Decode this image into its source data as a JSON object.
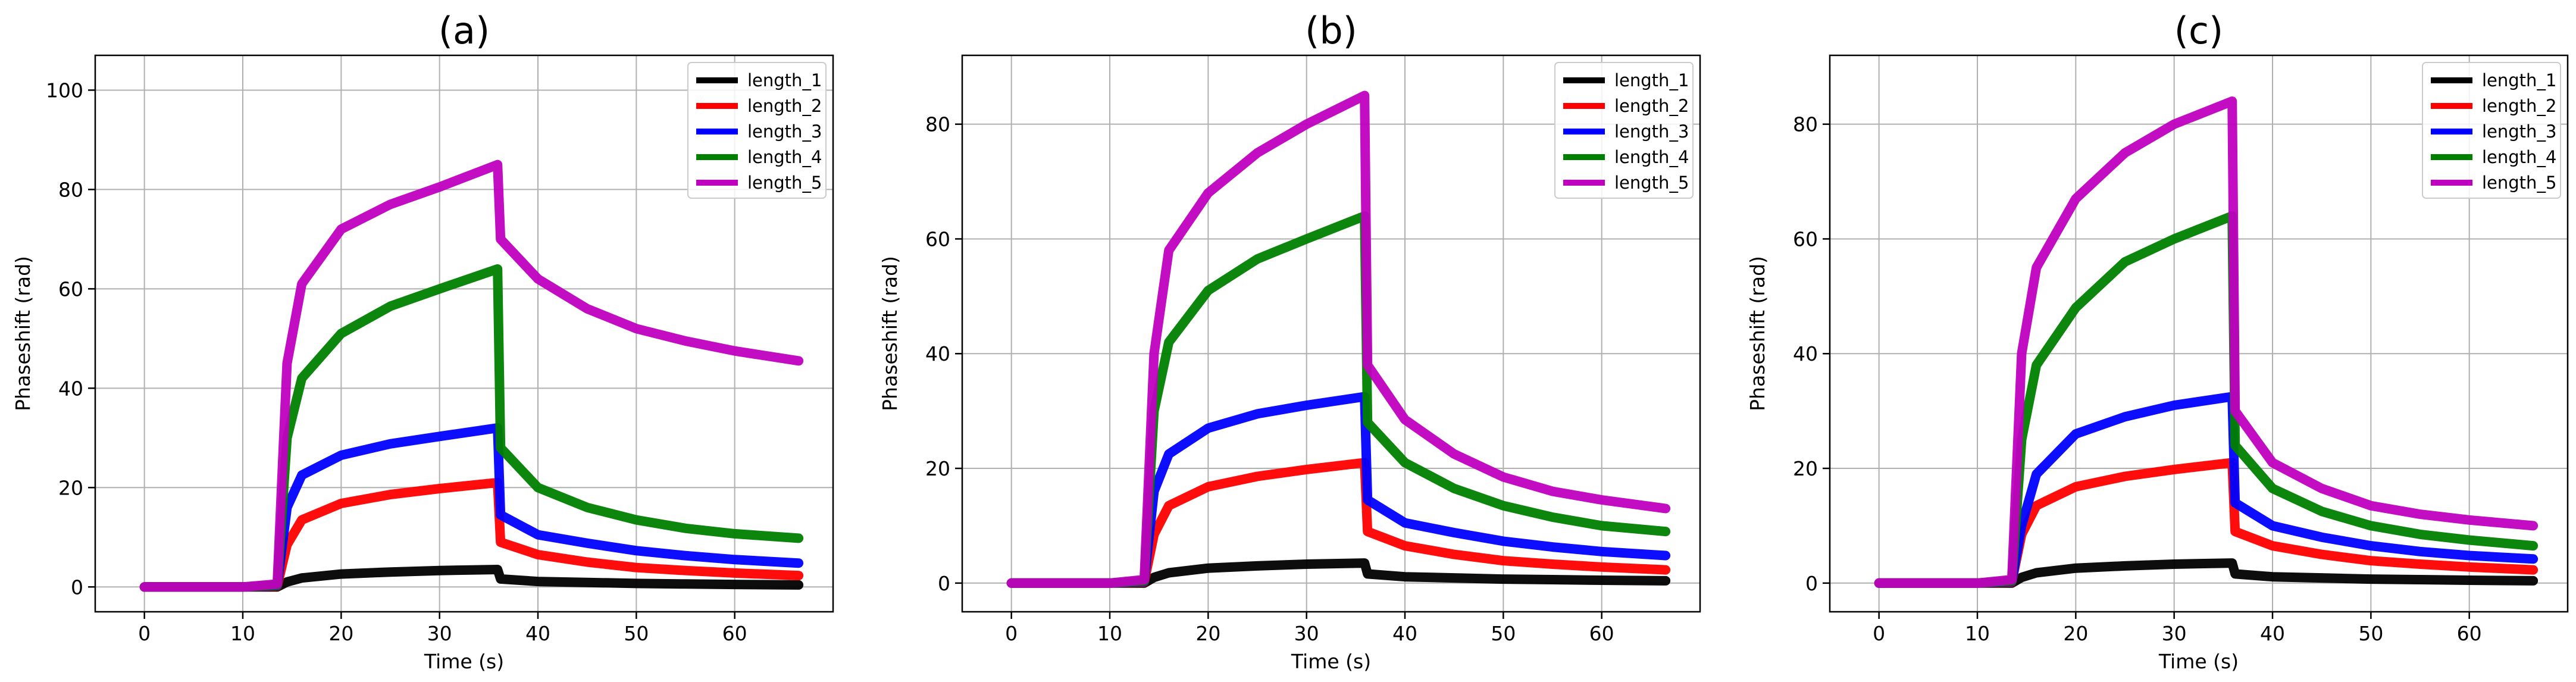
{
  "colors": {
    "length_1": "#000000",
    "length_2": "#ff0000",
    "length_3": "#0000ff",
    "length_4": "#008000",
    "length_5": "#bf00bf",
    "grid": "#b0b0b0",
    "axes": "#000000",
    "legend_border": "#cccccc"
  },
  "chart_data": [
    {
      "type": "line",
      "title": "(a)",
      "xlabel": "Time (s)",
      "ylabel": "Phaseshift (rad)",
      "xlim": [
        -5,
        70
      ],
      "ylim": [
        -5,
        107
      ],
      "xticks": [
        0,
        10,
        20,
        30,
        40,
        50,
        60
      ],
      "yticks": [
        0,
        20,
        40,
        60,
        80,
        100
      ],
      "grid": true,
      "legend": {
        "position": "top-right",
        "entries": [
          "length_1",
          "length_2",
          "length_3",
          "length_4",
          "length_5"
        ]
      },
      "x": [
        0,
        5,
        10,
        13.5,
        14.5,
        16,
        20,
        25,
        30,
        35.9,
        36.2,
        40,
        45,
        50,
        55,
        60,
        66.5
      ],
      "series": [
        {
          "name": "length_1",
          "values": [
            0,
            0,
            0,
            0,
            1.0,
            1.8,
            2.6,
            3.0,
            3.3,
            3.5,
            1.6,
            1.1,
            0.9,
            0.7,
            0.6,
            0.5,
            0.4
          ]
        },
        {
          "name": "length_2",
          "values": [
            0,
            0,
            0,
            0.2,
            8.5,
            13.5,
            16.8,
            18.6,
            19.8,
            21.0,
            9.0,
            6.5,
            5.0,
            3.9,
            3.3,
            2.8,
            2.3
          ]
        },
        {
          "name": "length_3",
          "values": [
            0,
            0,
            0,
            0.3,
            16.0,
            22.5,
            26.5,
            28.8,
            30.3,
            32.0,
            14.5,
            10.5,
            8.8,
            7.3,
            6.3,
            5.5,
            4.8
          ]
        },
        {
          "name": "length_4",
          "values": [
            0,
            0,
            0,
            0.4,
            30.0,
            42.0,
            51.0,
            56.5,
            60.0,
            64.0,
            28.0,
            20.0,
            16.0,
            13.5,
            11.8,
            10.7,
            9.8
          ]
        },
        {
          "name": "length_5",
          "values": [
            0,
            0,
            0,
            0.6,
            45.0,
            61.0,
            72.0,
            77.0,
            80.5,
            85.0,
            70.0,
            62.0,
            56.0,
            52.0,
            49.5,
            47.5,
            45.5
          ]
        }
      ]
    },
    {
      "type": "line",
      "title": "(b)",
      "xlabel": "Time (s)",
      "ylabel": "Phaseshift (rad)",
      "xlim": [
        -5,
        70
      ],
      "ylim": [
        -5,
        92
      ],
      "xticks": [
        0,
        10,
        20,
        30,
        40,
        50,
        60
      ],
      "yticks": [
        0,
        20,
        40,
        60,
        80
      ],
      "grid": true,
      "legend": {
        "position": "top-right",
        "entries": [
          "length_1",
          "length_2",
          "length_3",
          "length_4",
          "length_5"
        ]
      },
      "x": [
        0,
        5,
        10,
        13.5,
        14.5,
        16,
        20,
        25,
        30,
        35.9,
        36.2,
        40,
        45,
        50,
        55,
        60,
        66.5
      ],
      "series": [
        {
          "name": "length_1",
          "values": [
            0,
            0,
            0,
            0,
            1.0,
            1.8,
            2.6,
            3.0,
            3.3,
            3.5,
            1.6,
            1.1,
            0.9,
            0.7,
            0.6,
            0.5,
            0.4
          ]
        },
        {
          "name": "length_2",
          "values": [
            0,
            0,
            0,
            0.2,
            8.5,
            13.5,
            16.8,
            18.6,
            19.8,
            21.0,
            9.0,
            6.5,
            5.0,
            3.9,
            3.3,
            2.8,
            2.3
          ]
        },
        {
          "name": "length_3",
          "values": [
            0,
            0,
            0,
            0.3,
            16.0,
            22.5,
            27.0,
            29.5,
            31.0,
            32.5,
            14.5,
            10.5,
            8.8,
            7.3,
            6.3,
            5.5,
            4.8
          ]
        },
        {
          "name": "length_4",
          "values": [
            0,
            0,
            0,
            0.4,
            30.0,
            42.0,
            51.0,
            56.5,
            60.0,
            64.0,
            28.0,
            21.0,
            16.5,
            13.5,
            11.5,
            10.0,
            9.0
          ]
        },
        {
          "name": "length_5",
          "values": [
            0,
            0,
            0,
            0.6,
            40.0,
            58.0,
            68.0,
            75.0,
            80.0,
            85.0,
            38.0,
            28.5,
            22.5,
            18.5,
            16.0,
            14.5,
            13.0
          ]
        }
      ]
    },
    {
      "type": "line",
      "title": "(c)",
      "xlabel": "Time (s)",
      "ylabel": "Phaseshift (rad)",
      "xlim": [
        -5,
        70
      ],
      "ylim": [
        -5,
        92
      ],
      "xticks": [
        0,
        10,
        20,
        30,
        40,
        50,
        60
      ],
      "yticks": [
        0,
        20,
        40,
        60,
        80
      ],
      "grid": true,
      "legend": {
        "position": "top-right",
        "entries": [
          "length_1",
          "length_2",
          "length_3",
          "length_4",
          "length_5"
        ]
      },
      "x": [
        0,
        5,
        10,
        13.5,
        14.5,
        16,
        20,
        25,
        30,
        35.9,
        36.2,
        40,
        45,
        50,
        55,
        60,
        66.5
      ],
      "series": [
        {
          "name": "length_1",
          "values": [
            0,
            0,
            0,
            0,
            1.0,
            1.8,
            2.6,
            3.0,
            3.3,
            3.5,
            1.6,
            1.1,
            0.9,
            0.7,
            0.6,
            0.5,
            0.4
          ]
        },
        {
          "name": "length_2",
          "values": [
            0,
            0,
            0,
            0.2,
            8.5,
            13.5,
            16.8,
            18.6,
            19.8,
            21.0,
            9.0,
            6.5,
            5.0,
            3.9,
            3.3,
            2.8,
            2.3
          ]
        },
        {
          "name": "length_3",
          "values": [
            0,
            0,
            0,
            0.3,
            10.0,
            19.0,
            26.0,
            29.0,
            31.0,
            32.5,
            14.0,
            10.0,
            8.0,
            6.5,
            5.5,
            4.8,
            4.2
          ]
        },
        {
          "name": "length_4",
          "values": [
            0,
            0,
            0,
            0.4,
            25.0,
            38.0,
            48.0,
            56.0,
            60.0,
            64.0,
            24.0,
            16.5,
            12.5,
            10.0,
            8.5,
            7.5,
            6.5
          ]
        },
        {
          "name": "length_5",
          "values": [
            0,
            0,
            0,
            0.6,
            40.0,
            55.0,
            67.0,
            75.0,
            80.0,
            84.0,
            30.0,
            21.0,
            16.5,
            13.5,
            12.0,
            11.0,
            10.0
          ]
        }
      ]
    }
  ]
}
